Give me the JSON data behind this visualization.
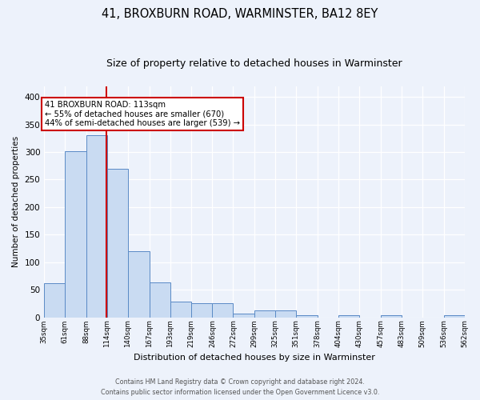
{
  "title": "41, BROXBURN ROAD, WARMINSTER, BA12 8EY",
  "subtitle": "Size of property relative to detached houses in Warminster",
  "xlabel": "Distribution of detached houses by size in Warminster",
  "ylabel": "Number of detached properties",
  "bar_edges": [
    35,
    61,
    88,
    114,
    140,
    167,
    193,
    219,
    246,
    272,
    299,
    325,
    351,
    378,
    404,
    430,
    457,
    483,
    509,
    536,
    562
  ],
  "bar_heights": [
    62,
    302,
    330,
    270,
    120,
    63,
    28,
    26,
    25,
    6,
    12,
    12,
    4,
    0,
    3,
    0,
    3,
    0,
    0,
    3
  ],
  "bar_color": "#c9dbf2",
  "bar_edgecolor": "#5a8ac6",
  "property_size": 113,
  "red_line_color": "#cc0000",
  "annotation_text": "41 BROXBURN ROAD: 113sqm\n← 55% of detached houses are smaller (670)\n44% of semi-detached houses are larger (539) →",
  "annotation_box_edgecolor": "#cc0000",
  "annotation_box_facecolor": "#ffffff",
  "footer_line1": "Contains HM Land Registry data © Crown copyright and database right 2024.",
  "footer_line2": "Contains public sector information licensed under the Open Government Licence v3.0.",
  "tick_labels": [
    "35sqm",
    "61sqm",
    "88sqm",
    "114sqm",
    "140sqm",
    "167sqm",
    "193sqm",
    "219sqm",
    "246sqm",
    "272sqm",
    "299sqm",
    "325sqm",
    "351sqm",
    "378sqm",
    "404sqm",
    "430sqm",
    "457sqm",
    "483sqm",
    "509sqm",
    "536sqm",
    "562sqm"
  ],
  "ylim": [
    0,
    420
  ],
  "yticks": [
    0,
    50,
    100,
    150,
    200,
    250,
    300,
    350,
    400
  ],
  "background_color": "#edf2fb",
  "plot_bg_color": "#edf2fb",
  "grid_color": "#ffffff",
  "title_fontsize": 10.5,
  "subtitle_fontsize": 9
}
